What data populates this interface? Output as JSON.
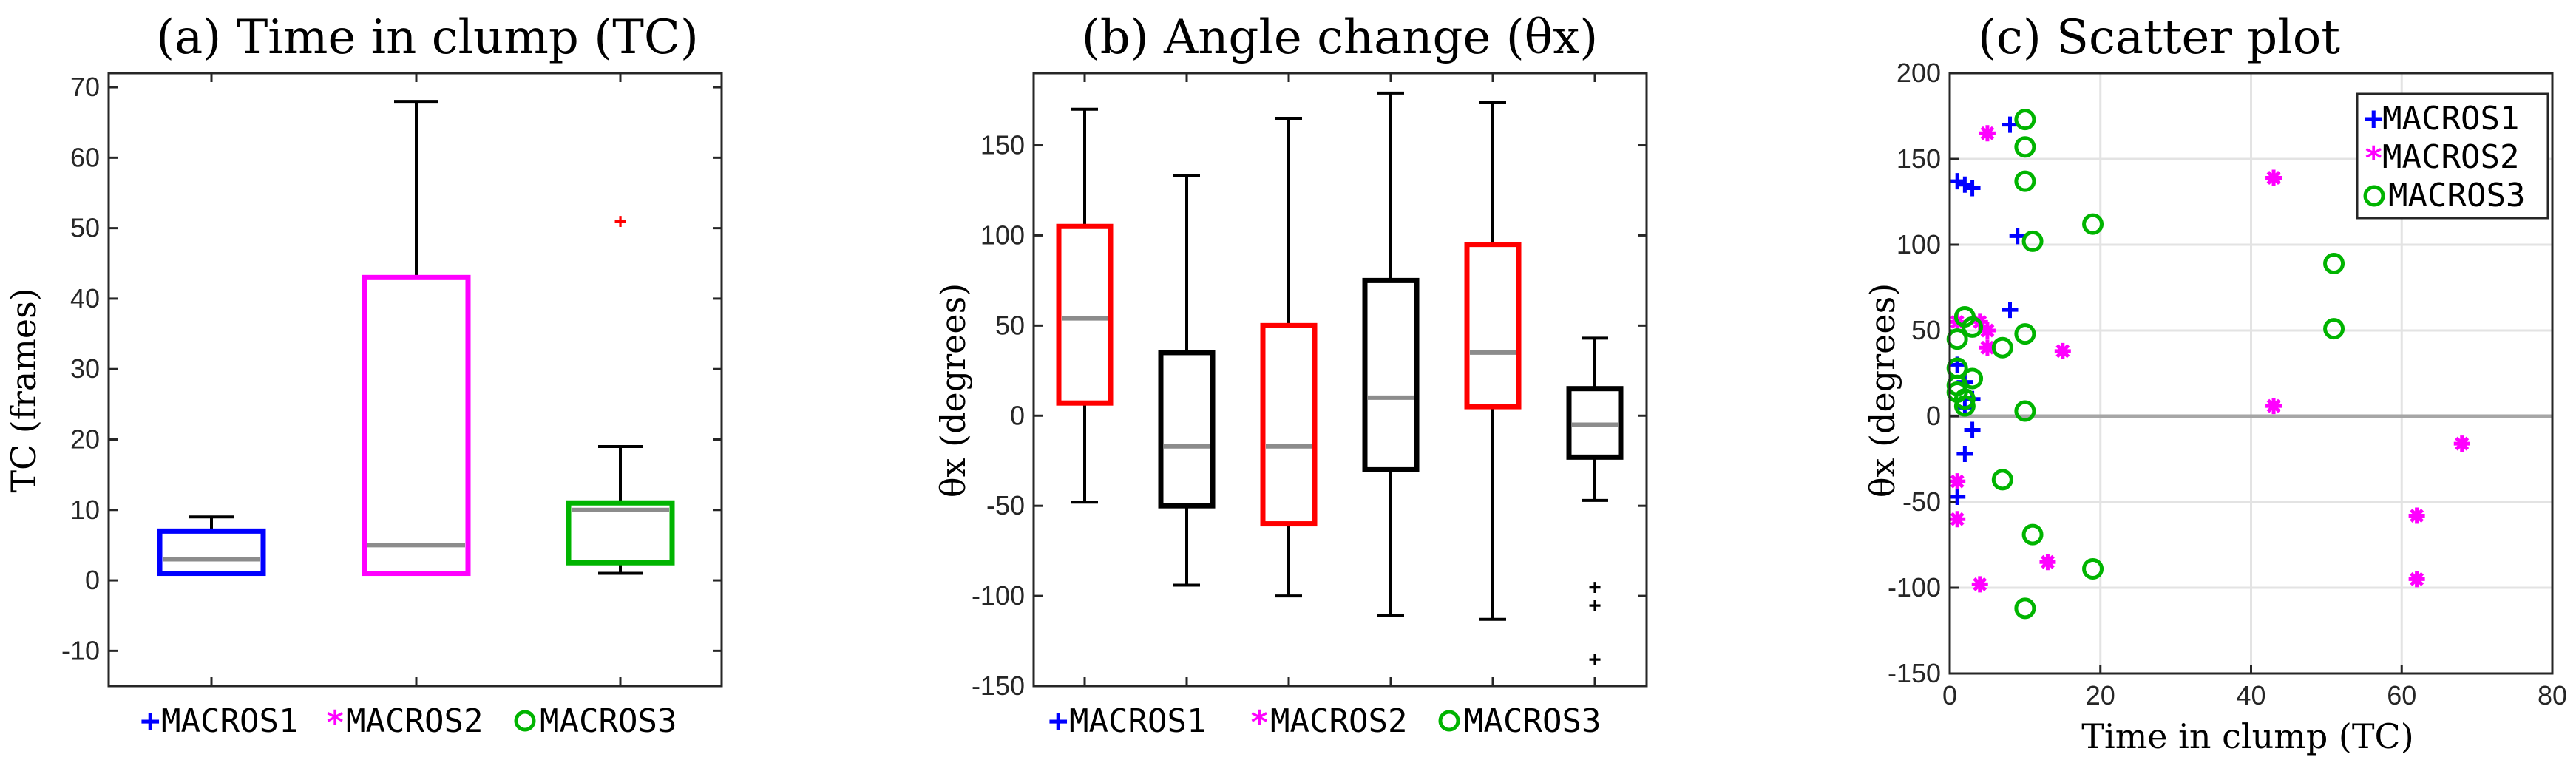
{
  "colors": {
    "macros1": "#0000ff",
    "macros2": "#ff00ff",
    "macros3": "#00b400",
    "red": "#ff0000",
    "black": "#000000",
    "median": "#8c8c8c",
    "grid": "#e3e3e3",
    "zeroline": "#a6a6a6"
  },
  "legend": {
    "macros1": "MACROS1",
    "macros2": "MACROS2",
    "macros3": "MACROS3"
  },
  "chart_data": [
    {
      "type": "box",
      "title": "(a) Time in clump (TC)",
      "xlabel": "",
      "ylabel": "TC (frames)",
      "ylim": [
        -15,
        72
      ],
      "yticks": [
        -10,
        0,
        10,
        20,
        30,
        40,
        50,
        60,
        70
      ],
      "grid": false,
      "boxes": [
        {
          "series": "MACROS1",
          "color": "#0000ff",
          "q1": 1,
          "median": 3,
          "q3": 7,
          "whisker_low": 1,
          "whisker_high": 9,
          "outliers": []
        },
        {
          "series": "MACROS2",
          "color": "#ff00ff",
          "q1": 1,
          "median": 5,
          "q3": 43,
          "whisker_low": 1,
          "whisker_high": 68,
          "outliers": []
        },
        {
          "series": "MACROS3",
          "color": "#00b400",
          "q1": 2.5,
          "median": 10,
          "q3": 11,
          "whisker_low": 1,
          "whisker_high": 19,
          "outliers": [
            51
          ]
        }
      ],
      "legend": [
        "MACROS1",
        "MACROS2",
        "MACROS3"
      ],
      "legend_position": "bottom"
    },
    {
      "type": "box",
      "title": "(b) Angle change (θx)",
      "xlabel": "",
      "ylabel": "θx (degrees)",
      "ylim": [
        -150,
        190
      ],
      "yticks": [
        -150,
        -100,
        -50,
        0,
        50,
        100,
        150
      ],
      "grid": false,
      "boxes": [
        {
          "color": "#ff0000",
          "q1": 7,
          "median": 54,
          "q3": 105,
          "whisker_low": -48,
          "whisker_high": 170,
          "outliers": []
        },
        {
          "color": "#000000",
          "q1": -50,
          "median": -17,
          "q3": 35,
          "whisker_low": -94,
          "whisker_high": 133,
          "outliers": []
        },
        {
          "color": "#ff0000",
          "q1": -60,
          "median": -17,
          "q3": 50,
          "whisker_low": -100,
          "whisker_high": 165,
          "outliers": []
        },
        {
          "color": "#000000",
          "q1": -30,
          "median": 10,
          "q3": 75,
          "whisker_low": -111,
          "whisker_high": 179,
          "outliers": []
        },
        {
          "color": "#ff0000",
          "q1": 5,
          "median": 35,
          "q3": 95,
          "whisker_low": -113,
          "whisker_high": 174,
          "outliers": []
        },
        {
          "color": "#000000",
          "q1": -23,
          "median": -5,
          "q3": 15,
          "whisker_low": -47,
          "whisker_high": 43,
          "outliers": [
            -95,
            -105,
            -135
          ]
        }
      ],
      "legend": [
        "MACROS1",
        "MACROS2",
        "MACROS3"
      ],
      "legend_position": "bottom"
    },
    {
      "type": "scatter",
      "title": "(c) Scatter plot",
      "xlabel": "Time in clump (TC)",
      "ylabel": "θx (degrees)",
      "xlim": [
        0,
        80
      ],
      "ylim": [
        -150,
        200
      ],
      "xticks": [
        0,
        20,
        40,
        60,
        80
      ],
      "yticks": [
        -150,
        -100,
        -50,
        0,
        50,
        100,
        150,
        200
      ],
      "grid": true,
      "legend_position": "top-right",
      "series": [
        {
          "name": "MACROS1",
          "marker": "plus",
          "color": "#0000ff",
          "points": [
            [
              1,
              137
            ],
            [
              2,
              135
            ],
            [
              3,
              133
            ],
            [
              8,
              170
            ],
            [
              9,
              105
            ],
            [
              8,
              62
            ],
            [
              1,
              30
            ],
            [
              2,
              20
            ],
            [
              3,
              10
            ],
            [
              2,
              5
            ],
            [
              3,
              -8
            ],
            [
              2,
              -22
            ],
            [
              1,
              -47
            ]
          ]
        },
        {
          "name": "MACROS2",
          "marker": "star",
          "color": "#ff00ff",
          "points": [
            [
              5,
              165
            ],
            [
              43,
              139
            ],
            [
              4,
              55
            ],
            [
              5,
              50
            ],
            [
              5,
              40
            ],
            [
              1,
              55
            ],
            [
              15,
              38
            ],
            [
              43,
              6
            ],
            [
              68,
              -16
            ],
            [
              1,
              -38
            ],
            [
              1,
              -60
            ],
            [
              62,
              -58
            ],
            [
              4,
              -98
            ],
            [
              13,
              -85
            ],
            [
              62,
              -95
            ]
          ]
        },
        {
          "name": "MACROS3",
          "marker": "circle",
          "color": "#00b400",
          "points": [
            [
              10,
              173
            ],
            [
              10,
              157
            ],
            [
              10,
              137
            ],
            [
              19,
              112
            ],
            [
              11,
              102
            ],
            [
              51,
              89
            ],
            [
              2,
              58
            ],
            [
              3,
              52
            ],
            [
              1,
              45
            ],
            [
              7,
              40
            ],
            [
              10,
              48
            ],
            [
              51,
              51
            ],
            [
              1,
              28
            ],
            [
              3,
              22
            ],
            [
              1,
              18
            ],
            [
              1,
              14
            ],
            [
              2,
              10
            ],
            [
              2,
              6
            ],
            [
              10,
              3
            ],
            [
              7,
              -37
            ],
            [
              11,
              -69
            ],
            [
              19,
              -89
            ],
            [
              10,
              -112
            ]
          ]
        }
      ]
    }
  ]
}
